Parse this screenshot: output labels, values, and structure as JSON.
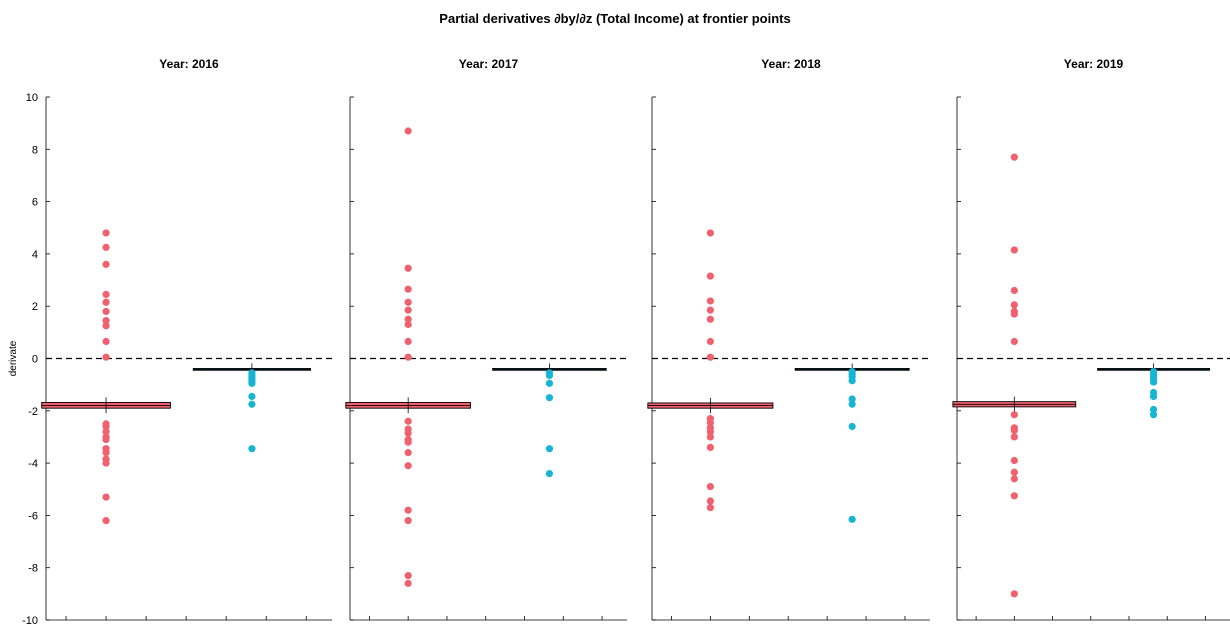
{
  "chart_data": {
    "type": "scatter",
    "title": "Partial derivatives ∂by/∂z (Total Income) at frontier points",
    "ylabel": "derivate",
    "ylim": [
      -10,
      10
    ],
    "yticks": [
      -10,
      -8,
      -6,
      -4,
      -2,
      0,
      2,
      4,
      6,
      8,
      10
    ],
    "reference_line": {
      "y": 0,
      "style": "dashed"
    },
    "colors": {
      "group1": "#f0606e",
      "group2": "#17b5d4",
      "box_edge": "#000000"
    },
    "panels": [
      {
        "title": "Year: 2016",
        "boxes": [
          {
            "q1": -1.9,
            "median": -1.8,
            "q3": -1.68,
            "color": "#f0606e"
          },
          {
            "q1": -0.45,
            "median": -0.42,
            "q3": -0.38,
            "color": "#17b5d4"
          }
        ],
        "series": [
          {
            "values": [
              4.8,
              4.25,
              3.6,
              2.45,
              2.15,
              1.8,
              1.45,
              1.25,
              0.65,
              0.05,
              -2.5,
              -2.6,
              -2.8,
              -3.0,
              -3.1,
              -3.45,
              -3.6,
              -3.85,
              -4.0,
              -5.3,
              -6.2
            ]
          },
          {
            "values": [
              -0.55,
              -0.65,
              -0.75,
              -0.85,
              -0.95,
              -1.45,
              -1.75,
              -3.45
            ]
          }
        ]
      },
      {
        "title": "Year: 2017",
        "boxes": [
          {
            "q1": -1.9,
            "median": -1.8,
            "q3": -1.68,
            "color": "#f0606e"
          },
          {
            "q1": -0.45,
            "median": -0.42,
            "q3": -0.38,
            "color": "#17b5d4"
          }
        ],
        "series": [
          {
            "values": [
              8.7,
              3.45,
              2.65,
              2.15,
              1.85,
              1.5,
              1.3,
              0.65,
              0.05,
              -2.4,
              -2.7,
              -2.85,
              -3.1,
              -3.2,
              -3.6,
              -4.1,
              -5.8,
              -6.2,
              -8.3,
              -8.6
            ]
          },
          {
            "values": [
              -0.55,
              -0.65,
              -0.95,
              -1.5,
              -3.45,
              -4.4
            ]
          }
        ]
      },
      {
        "title": "Year: 2018",
        "boxes": [
          {
            "q1": -1.9,
            "median": -1.8,
            "q3": -1.7,
            "color": "#f0606e"
          },
          {
            "q1": -0.45,
            "median": -0.42,
            "q3": -0.38,
            "color": "#17b5d4"
          }
        ],
        "series": [
          {
            "values": [
              4.8,
              3.15,
              2.2,
              1.85,
              1.5,
              0.65,
              0.05,
              -2.3,
              -2.45,
              -2.65,
              -2.8,
              -3.0,
              -3.4,
              -4.9,
              -5.45,
              -5.7
            ]
          },
          {
            "values": [
              -0.5,
              -0.6,
              -0.7,
              -0.85,
              -1.55,
              -1.75,
              -2.6,
              -6.15
            ]
          }
        ]
      },
      {
        "title": "Year: 2019",
        "boxes": [
          {
            "q1": -1.85,
            "median": -1.75,
            "q3": -1.65,
            "color": "#f0606e"
          },
          {
            "q1": -0.45,
            "median": -0.42,
            "q3": -0.38,
            "color": "#17b5d4"
          }
        ],
        "series": [
          {
            "values": [
              7.7,
              4.15,
              2.6,
              2.05,
              1.8,
              1.7,
              0.65,
              -2.15,
              -2.65,
              -2.75,
              -3.0,
              -3.9,
              -4.35,
              -4.6,
              -5.25,
              -9.0
            ]
          },
          {
            "values": [
              -0.5,
              -0.6,
              -0.7,
              -0.8,
              -0.9,
              -1.3,
              -1.45,
              -1.95,
              -2.15
            ]
          }
        ]
      }
    ]
  }
}
